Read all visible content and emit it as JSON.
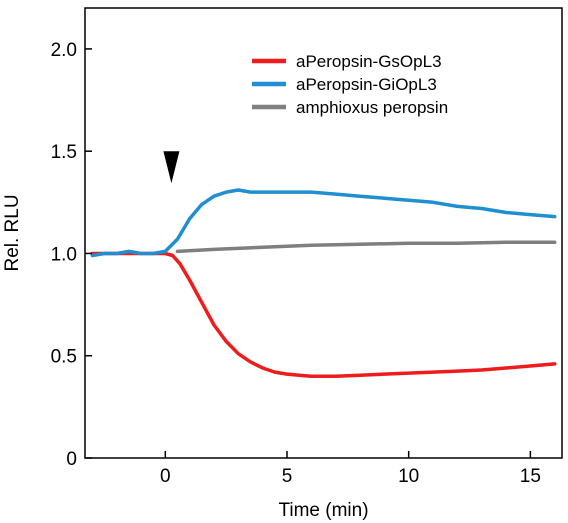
{
  "chart_data": {
    "type": "line",
    "xlabel": "Time (min)",
    "ylabel": "Rel. RLU",
    "xlim": [
      -3.3,
      16.3
    ],
    "ylim": [
      0,
      2.2
    ],
    "x_ticks": [
      0,
      5,
      10,
      15
    ],
    "x_tick_labels": [
      "0",
      "5",
      "10",
      "15"
    ],
    "y_ticks": [
      0,
      0.5,
      1.0,
      1.5,
      2.0
    ],
    "y_tick_labels": [
      "0",
      "0.5",
      "1.0",
      "1.5",
      "2.0"
    ],
    "grid": false,
    "legend_position": "top-right",
    "annotation": {
      "type": "arrowhead",
      "x": 0.25,
      "y": 1.48
    },
    "series": [
      {
        "name": "aPeropsin-GsOpL3",
        "color": "#ee1c1c",
        "x": [
          -3,
          -2.5,
          -2,
          -1.5,
          -1,
          -0.5,
          0,
          0.3,
          0.6,
          1.0,
          1.5,
          2.0,
          2.5,
          3.0,
          3.5,
          4.0,
          4.5,
          5.0,
          5.5,
          6.0,
          7.0,
          8.0,
          9.0,
          10.0,
          11.0,
          12.0,
          13.0,
          14.0,
          15.0,
          16.0
        ],
        "y": [
          1.0,
          1.0,
          1.0,
          1.0,
          1.0,
          1.0,
          1.0,
          0.99,
          0.95,
          0.87,
          0.76,
          0.65,
          0.57,
          0.51,
          0.47,
          0.44,
          0.42,
          0.41,
          0.405,
          0.4,
          0.4,
          0.405,
          0.41,
          0.415,
          0.42,
          0.425,
          0.43,
          0.44,
          0.45,
          0.46
        ]
      },
      {
        "name": "aPeropsin-GiOpL3",
        "color": "#1f8fd1",
        "x": [
          -3,
          -2.5,
          -2,
          -1.5,
          -1,
          -0.5,
          0,
          0.5,
          0.8,
          1.0,
          1.5,
          2.0,
          2.5,
          3.0,
          3.5,
          4.0,
          5.0,
          6.0,
          7.0,
          8.0,
          9.0,
          10.0,
          11.0,
          12.0,
          13.0,
          14.0,
          15.0,
          16.0
        ],
        "y": [
          0.99,
          1.0,
          1.0,
          1.01,
          1.0,
          1.0,
          1.01,
          1.07,
          1.13,
          1.17,
          1.24,
          1.28,
          1.3,
          1.31,
          1.3,
          1.3,
          1.3,
          1.3,
          1.29,
          1.28,
          1.27,
          1.26,
          1.25,
          1.23,
          1.22,
          1.2,
          1.19,
          1.18
        ]
      },
      {
        "name": "amphioxus peropsin",
        "color": "#7f7f7f",
        "x": [
          0.5,
          2,
          4,
          6,
          8,
          10,
          12,
          14,
          16
        ],
        "y": [
          1.01,
          1.02,
          1.03,
          1.04,
          1.045,
          1.05,
          1.05,
          1.055,
          1.055
        ]
      }
    ]
  }
}
